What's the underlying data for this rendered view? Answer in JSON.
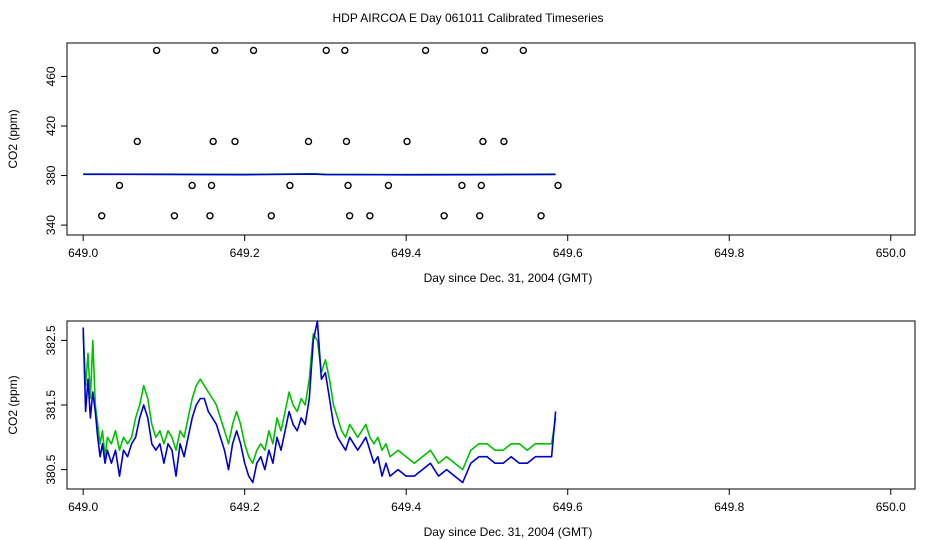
{
  "title": "HDP AIRCOA E  Day 061011  Calibrated Timeseries",
  "chart_data": [
    {
      "type": "scatter",
      "xlabel": "Day since Dec. 31, 2004 (GMT)",
      "ylabel": "CO2 (ppm)",
      "xlim": [
        648.98,
        650.03
      ],
      "ylim": [
        332,
        487
      ],
      "xticks": [
        649.0,
        649.2,
        649.4,
        649.6,
        649.8,
        650.0
      ],
      "xtick_labels": [
        "649.0",
        "649.2",
        "649.4",
        "649.6",
        "649.8",
        "650.0"
      ],
      "yticks": [
        340,
        380,
        420,
        460
      ],
      "ytick_labels": [
        "340",
        "380",
        "420",
        "460"
      ],
      "grid": false,
      "points": [
        {
          "x": 649.023,
          "y": 347.5
        },
        {
          "x": 649.045,
          "y": 372.0
        },
        {
          "x": 649.067,
          "y": 407.5
        },
        {
          "x": 649.091,
          "y": 481.0
        },
        {
          "x": 649.113,
          "y": 347.5
        },
        {
          "x": 649.135,
          "y": 372.0
        },
        {
          "x": 649.157,
          "y": 347.5
        },
        {
          "x": 649.159,
          "y": 372.0
        },
        {
          "x": 649.161,
          "y": 407.5
        },
        {
          "x": 649.163,
          "y": 481.0
        },
        {
          "x": 649.188,
          "y": 407.5
        },
        {
          "x": 649.211,
          "y": 481.0
        },
        {
          "x": 649.233,
          "y": 347.5
        },
        {
          "x": 649.256,
          "y": 372.0
        },
        {
          "x": 649.279,
          "y": 407.5
        },
        {
          "x": 649.301,
          "y": 481.0
        },
        {
          "x": 649.324,
          "y": 481.0
        },
        {
          "x": 649.326,
          "y": 407.5
        },
        {
          "x": 649.328,
          "y": 372.0
        },
        {
          "x": 649.33,
          "y": 347.5
        },
        {
          "x": 649.355,
          "y": 347.5
        },
        {
          "x": 649.378,
          "y": 372.0
        },
        {
          "x": 649.401,
          "y": 407.5
        },
        {
          "x": 649.424,
          "y": 481.0
        },
        {
          "x": 649.447,
          "y": 347.5
        },
        {
          "x": 649.469,
          "y": 372.0
        },
        {
          "x": 649.491,
          "y": 347.5
        },
        {
          "x": 649.493,
          "y": 372.0
        },
        {
          "x": 649.495,
          "y": 407.5
        },
        {
          "x": 649.497,
          "y": 481.0
        },
        {
          "x": 649.521,
          "y": 407.5
        },
        {
          "x": 649.545,
          "y": 481.0
        },
        {
          "x": 649.567,
          "y": 347.5
        },
        {
          "x": 649.588,
          "y": 372.0
        }
      ],
      "series": [
        {
          "color": "#00c000",
          "x": [
            649.0,
            649.1,
            649.2,
            649.285,
            649.3,
            649.4,
            649.5,
            649.585
          ],
          "y": [
            381.2,
            381.1,
            380.9,
            381.4,
            381.0,
            380.8,
            380.9,
            381.1
          ]
        },
        {
          "color": "#0000cc",
          "x": [
            649.0,
            649.1,
            649.2,
            649.285,
            649.3,
            649.4,
            649.5,
            649.585
          ],
          "y": [
            381.0,
            380.9,
            380.7,
            381.2,
            380.8,
            380.6,
            380.7,
            380.9
          ]
        }
      ]
    },
    {
      "type": "line",
      "xlabel": "Day since Dec. 31, 2004 (GMT)",
      "ylabel": "CO2 (ppm)",
      "xlim": [
        648.98,
        650.03
      ],
      "ylim": [
        380.2,
        382.8
      ],
      "xticks": [
        649.0,
        649.2,
        649.4,
        649.6,
        649.8,
        650.0
      ],
      "xtick_labels": [
        "649.0",
        "649.2",
        "649.4",
        "649.6",
        "649.8",
        "650.0"
      ],
      "yticks": [
        380.5,
        381.5,
        382.5
      ],
      "ytick_labels": [
        "380.5",
        "381.5",
        "382.5"
      ],
      "grid": false,
      "series": [
        {
          "color": "#00c000",
          "x": [
            649.0,
            649.003,
            649.006,
            649.009,
            649.012,
            649.015,
            649.018,
            649.021,
            649.024,
            649.027,
            649.03,
            649.035,
            649.04,
            649.045,
            649.05,
            649.055,
            649.06,
            649.065,
            649.07,
            649.075,
            649.08,
            649.085,
            649.09,
            649.095,
            649.1,
            649.105,
            649.11,
            649.115,
            649.12,
            649.125,
            649.13,
            649.135,
            649.14,
            649.145,
            649.15,
            649.155,
            649.16,
            649.165,
            649.17,
            649.175,
            649.18,
            649.185,
            649.19,
            649.195,
            649.2,
            649.205,
            649.21,
            649.215,
            649.22,
            649.225,
            649.23,
            649.235,
            649.24,
            649.245,
            649.25,
            649.255,
            649.26,
            649.265,
            649.27,
            649.275,
            649.28,
            649.285,
            649.29,
            649.295,
            649.3,
            649.305,
            649.31,
            649.315,
            649.32,
            649.325,
            649.33,
            649.335,
            649.34,
            649.345,
            649.35,
            649.355,
            649.36,
            649.365,
            649.37,
            649.375,
            649.38,
            649.39,
            649.4,
            649.41,
            649.42,
            649.43,
            649.44,
            649.45,
            649.46,
            649.47,
            649.48,
            649.49,
            649.5,
            649.51,
            649.52,
            649.53,
            649.54,
            649.55,
            649.56,
            649.57,
            649.58,
            649.585
          ],
          "y": [
            382.6,
            381.8,
            382.3,
            381.6,
            382.5,
            381.5,
            381.2,
            380.9,
            381.1,
            380.7,
            381.0,
            380.9,
            381.1,
            380.8,
            381.0,
            380.9,
            381.0,
            381.3,
            381.5,
            381.8,
            381.6,
            381.2,
            381.0,
            381.1,
            380.9,
            381.1,
            381.0,
            380.8,
            381.1,
            381.0,
            381.3,
            381.6,
            381.8,
            381.9,
            381.8,
            381.7,
            381.6,
            381.5,
            381.3,
            381.1,
            380.9,
            381.2,
            381.4,
            381.2,
            380.9,
            380.7,
            380.6,
            380.8,
            380.9,
            380.8,
            381.1,
            380.9,
            381.3,
            381.1,
            381.4,
            381.7,
            381.5,
            381.4,
            381.6,
            381.5,
            381.9,
            382.6,
            382.5,
            382.0,
            382.2,
            381.9,
            381.5,
            381.3,
            381.1,
            381.0,
            381.2,
            381.1,
            381.0,
            381.1,
            381.2,
            381.0,
            380.9,
            381.0,
            380.8,
            380.9,
            380.7,
            380.8,
            380.7,
            380.6,
            380.7,
            380.8,
            380.6,
            380.7,
            380.6,
            380.5,
            380.8,
            380.9,
            380.9,
            380.8,
            380.8,
            380.9,
            380.9,
            380.8,
            380.9,
            380.9,
            380.9,
            381.3
          ]
        },
        {
          "color": "#0000cc",
          "x": [
            649.0,
            649.003,
            649.006,
            649.009,
            649.012,
            649.015,
            649.018,
            649.021,
            649.024,
            649.027,
            649.03,
            649.035,
            649.04,
            649.045,
            649.05,
            649.055,
            649.06,
            649.065,
            649.07,
            649.075,
            649.08,
            649.085,
            649.09,
            649.095,
            649.1,
            649.105,
            649.11,
            649.115,
            649.12,
            649.125,
            649.13,
            649.135,
            649.14,
            649.145,
            649.15,
            649.155,
            649.16,
            649.165,
            649.17,
            649.175,
            649.18,
            649.185,
            649.19,
            649.195,
            649.2,
            649.205,
            649.21,
            649.215,
            649.22,
            649.225,
            649.23,
            649.235,
            649.24,
            649.245,
            649.25,
            649.255,
            649.26,
            649.265,
            649.27,
            649.275,
            649.28,
            649.285,
            649.29,
            649.295,
            649.3,
            649.305,
            649.31,
            649.315,
            649.32,
            649.325,
            649.33,
            649.335,
            649.34,
            649.345,
            649.35,
            649.355,
            649.36,
            649.365,
            649.37,
            649.375,
            649.38,
            649.39,
            649.4,
            649.41,
            649.42,
            649.43,
            649.44,
            649.45,
            649.46,
            649.47,
            649.48,
            649.49,
            649.5,
            649.51,
            649.52,
            649.53,
            649.54,
            649.55,
            649.56,
            649.57,
            649.58,
            649.585
          ],
          "y": [
            382.7,
            381.4,
            381.9,
            381.3,
            381.7,
            381.4,
            381.0,
            380.7,
            380.9,
            380.6,
            380.8,
            380.6,
            380.8,
            380.4,
            380.8,
            380.7,
            380.9,
            381.0,
            381.3,
            381.5,
            381.3,
            380.9,
            380.8,
            380.9,
            380.6,
            380.9,
            380.8,
            380.4,
            380.9,
            380.7,
            381.0,
            381.3,
            381.5,
            381.6,
            381.6,
            381.4,
            381.3,
            381.2,
            381.0,
            380.8,
            380.5,
            380.9,
            381.1,
            380.9,
            380.6,
            380.4,
            380.3,
            380.6,
            380.7,
            380.5,
            380.8,
            380.6,
            381.0,
            380.8,
            381.1,
            381.4,
            381.2,
            381.1,
            381.3,
            381.2,
            381.6,
            382.5,
            382.8,
            381.9,
            382.0,
            381.6,
            381.2,
            381.0,
            380.9,
            380.8,
            381.0,
            380.9,
            380.8,
            380.9,
            381.0,
            380.8,
            380.6,
            380.7,
            380.4,
            380.6,
            380.4,
            380.5,
            380.4,
            380.4,
            380.5,
            380.6,
            380.4,
            380.5,
            380.4,
            380.3,
            380.6,
            380.7,
            380.7,
            380.6,
            380.6,
            380.7,
            380.6,
            380.6,
            380.7,
            380.7,
            380.7,
            381.4
          ]
        }
      ]
    }
  ]
}
